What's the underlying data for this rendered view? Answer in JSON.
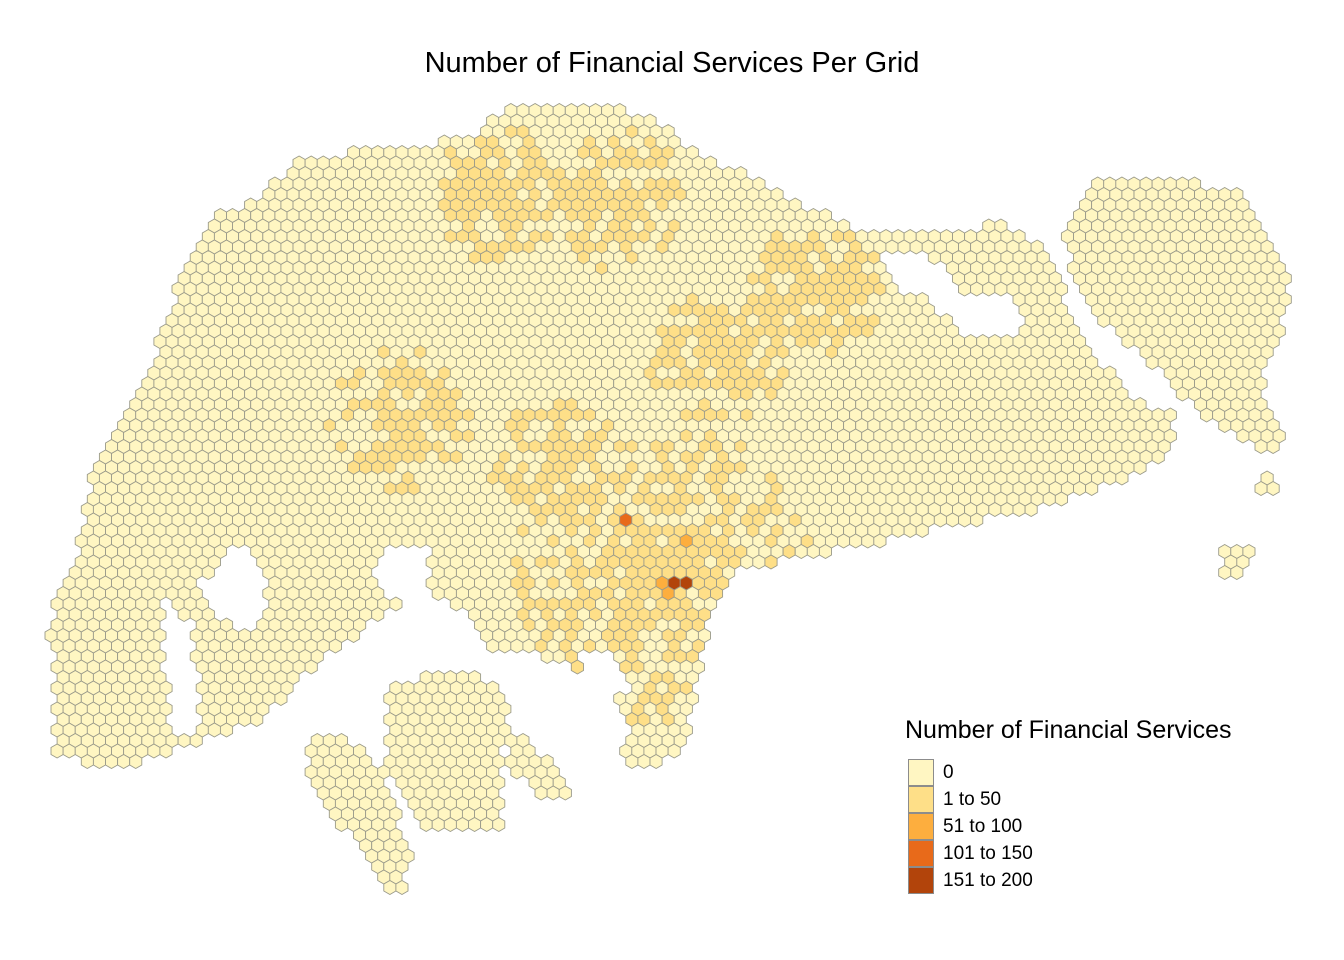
{
  "map": {
    "title": "Number of Financial Services Per Grid"
  },
  "legend": {
    "title": "Number of Financial Services",
    "items": [
      {
        "label": "0",
        "color": "#FFF6C2"
      },
      {
        "label": "1 to 50",
        "color": "#FEDF88"
      },
      {
        "label": "51 to 100",
        "color": "#FDAE3E"
      },
      {
        "label": "101 to 150",
        "color": "#E86A1A"
      },
      {
        "label": "151 to 200",
        "color": "#B2440B"
      }
    ]
  },
  "colors": {
    "hex_border": "#9a9a8a",
    "background": "#ffffff"
  }
}
